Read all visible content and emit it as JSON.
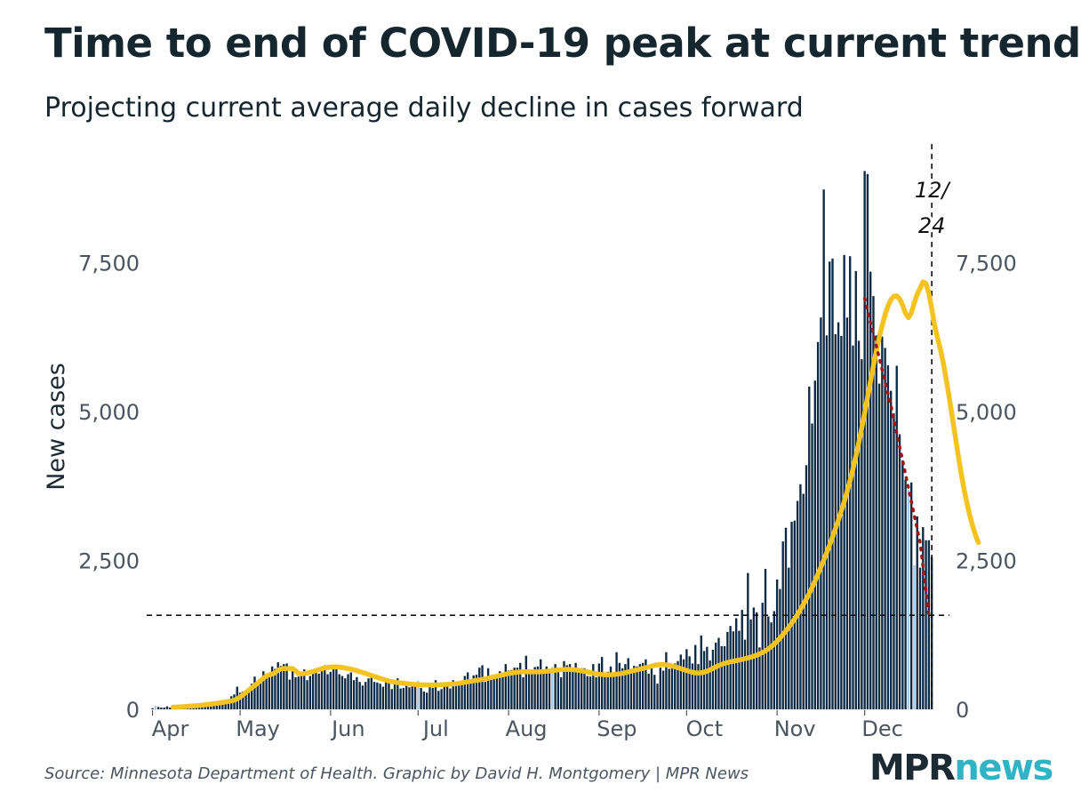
{
  "title": "Time to end of COVID-19 peak at current trend",
  "subtitle": "Projecting current average daily decline in cases forward",
  "source": "Source: Minnesota Department of Health. Graphic by David H. Montgomery | MPR News",
  "logo": {
    "part1": "MPR",
    "part2": "news"
  },
  "colors": {
    "bar_dark": "#0d2a45",
    "bar_light": "#a9c7df",
    "average_line": "#f5c320",
    "projection": "#a01414",
    "reference": "#111111",
    "text": "#1b2a33",
    "logo_accent": "#2fb3c5"
  },
  "chart_data": {
    "type": "bar",
    "ylabel": "New cases",
    "ylim": [
      0,
      9300
    ],
    "yticks": [
      0,
      2500,
      5000,
      7500
    ],
    "ytick_labels": [
      "0",
      "2,500",
      "5,000",
      "7,500"
    ],
    "month_labels": [
      "Apr",
      "May",
      "Jun",
      "Jul",
      "Aug",
      "Sep",
      "Oct",
      "Nov",
      "Dec"
    ],
    "month_starts": [
      "2020-04-01",
      "2020-05-01",
      "2020-06-01",
      "2020-07-01",
      "2020-08-01",
      "2020-09-01",
      "2020-10-01",
      "2020-11-01",
      "2020-12-01"
    ],
    "x_range": [
      "2020-03-30",
      "2020-12-27"
    ],
    "series": [
      {
        "kind": "daily_bars",
        "start_date": "2020-04-01",
        "values": [
          20,
          60,
          40,
          30,
          30,
          50,
          30,
          50,
          40,
          50,
          40,
          50,
          60,
          60,
          70,
          70,
          80,
          80,
          90,
          100,
          110,
          110,
          120,
          140,
          150,
          130,
          160,
          220,
          250,
          380,
          280,
          300,
          320,
          330,
          430,
          550,
          480,
          510,
          640,
          560,
          600,
          720,
          680,
          790,
          730,
          760,
          770,
          500,
          640,
          540,
          550,
          630,
          670,
          490,
          560,
          620,
          680,
          600,
          640,
          740,
          590,
          630,
          680,
          690,
          590,
          560,
          520,
          590,
          620,
          490,
          540,
          460,
          400,
          460,
          520,
          580,
          460,
          450,
          430,
          380,
          470,
          480,
          340,
          420,
          520,
          350,
          360,
          420,
          370,
          410,
          390,
          480,
          360,
          300,
          280,
          370,
          360,
          490,
          310,
          340,
          400,
          420,
          350,
          490,
          420,
          450,
          460,
          560,
          620,
          500,
          570,
          580,
          700,
          740,
          460,
          690,
          510,
          580,
          580,
          640,
          590,
          760,
          650,
          660,
          700,
          700,
          780,
          540,
          900,
          620,
          640,
          710,
          720,
          840,
          660,
          720,
          680,
          710,
          760,
          630,
          540,
          810,
          740,
          760,
          640,
          780,
          640,
          690,
          690,
          560,
          550,
          760,
          540,
          770,
          880,
          560,
          630,
          720,
          550,
          960,
          780,
          690,
          760,
          860,
          680,
          730,
          720,
          760,
          780,
          840,
          600,
          710,
          580,
          430,
          700,
          650,
          960,
          680,
          730,
          770,
          810,
          920,
          840,
          1010,
          890,
          770,
          1080,
          760,
          1240,
          980,
          1050,
          820,
          1000,
          1120,
          1200,
          1060,
          1060,
          1300,
          1400,
          1310,
          1530,
          1320,
          1670,
          1170,
          2290,
          1510,
          1710,
          1630,
          1040,
          1790,
          2360,
          1560,
          1460,
          1650,
          2180,
          2020,
          2820,
          3050,
          2380,
          3150,
          3170,
          3500,
          3780,
          3620,
          4100,
          5420,
          4800,
          5520,
          6170,
          6580,
          8730,
          6280,
          7520,
          7570,
          6300,
          6500,
          6270,
          7630,
          6580,
          7610,
          6110,
          7360,
          6190,
          5880,
          9040,
          8990,
          7350,
          6940,
          6280,
          5470,
          6260,
          6070,
          5780,
          5350,
          4970,
          5770,
          4620,
          4180,
          3860,
          3690,
          3810,
          2420,
          3240,
          2380,
          3060,
          2840,
          2840,
          2560
        ],
        "light_indices": [
          1,
          8,
          91,
          137,
          259,
          261
        ],
        "light_extra": [
          0,
          0,
          0,
          0,
          0,
          0
        ]
      },
      {
        "kind": "seven_day_average",
        "start_date": "2020-04-08",
        "values": [
          36,
          36,
          41,
          43,
          47,
          50,
          54,
          57,
          61,
          66,
          71,
          76,
          82,
          88,
          95,
          101,
          108,
          116,
          124,
          132,
          141,
          153,
          175,
          207,
          243,
          283,
          324,
          363,
          400,
          441,
          480,
          523,
          559,
          580,
          592,
          614,
          657,
          680,
          684,
          685,
          687,
          686,
          650,
          600,
          596,
          600,
          610,
          621,
          635,
          651,
          666,
          682,
          696,
          704,
          709,
          713,
          713,
          709,
          702,
          694,
          684,
          675,
          663,
          650,
          634,
          618,
          602,
          585,
          569,
          553,
          537,
          521,
          505,
          490,
          475,
          464,
          456,
          449,
          443,
          438,
          432,
          427,
          422,
          418,
          414,
          411,
          410,
          410,
          409,
          409,
          410,
          411,
          413,
          416,
          419,
          422,
          425,
          431,
          438,
          446,
          454,
          463,
          471,
          479,
          487,
          494,
          502,
          511,
          522,
          534,
          546,
          557,
          568,
          579,
          590,
          601,
          610,
          618,
          624,
          628,
          630,
          631,
          631,
          629,
          628,
          629,
          631,
          634,
          639,
          644,
          650,
          657,
          663,
          667,
          670,
          671,
          670,
          667,
          662,
          655,
          646,
          637,
          627,
          616,
          606,
          597,
          590,
          585,
          581,
          580,
          581,
          584,
          589,
          596,
          605,
          615,
          627,
          640,
          652,
          664,
          676,
          688,
          700,
          713,
          726,
          739,
          748,
          752,
          751,
          747,
          739,
          728,
          715,
          700,
          684,
          668,
          652,
          636,
          622,
          612,
          610,
          614,
          624,
          640,
          662,
          687,
          712,
          735,
          755,
          772,
          786,
          798,
          808,
          818,
          828,
          839,
          851,
          863,
          877,
          892,
          909,
          930,
          954,
          982,
          1015,
          1053,
          1096,
          1145,
          1198,
          1255,
          1316,
          1380,
          1446,
          1517,
          1594,
          1676,
          1762,
          1851,
          1945,
          2047,
          2157,
          2271,
          2388,
          2508,
          2631,
          2760,
          2894,
          3034,
          3180,
          3332,
          3491,
          3659,
          3841,
          4037,
          4251,
          4482,
          4723,
          4975,
          5239,
          5509,
          5772,
          6018,
          6244,
          6448,
          6627,
          6773,
          6880,
          6938,
          6943,
          6893,
          6789,
          6651,
          6577,
          6659,
          6826,
          6973,
          7070,
          7180,
          7150,
          6990,
          6725,
          6440,
          6230,
          6037,
          5806,
          5523,
          5225,
          4920,
          4601,
          4284,
          3981,
          3712,
          3470,
          3260,
          3080,
          2921,
          2800
        ]
      },
      {
        "kind": "projection",
        "points": [
          [
            "2020-12-01",
            6900
          ],
          [
            "2020-12-10",
            5100
          ],
          [
            "2020-12-20",
            2800
          ],
          [
            "2020-12-23",
            1580
          ]
        ]
      }
    ],
    "reference_lines": {
      "horizontal_y": 1580,
      "vertical_date": "2020-12-24",
      "vertical_label_lines": [
        "12/",
        "24"
      ]
    }
  }
}
